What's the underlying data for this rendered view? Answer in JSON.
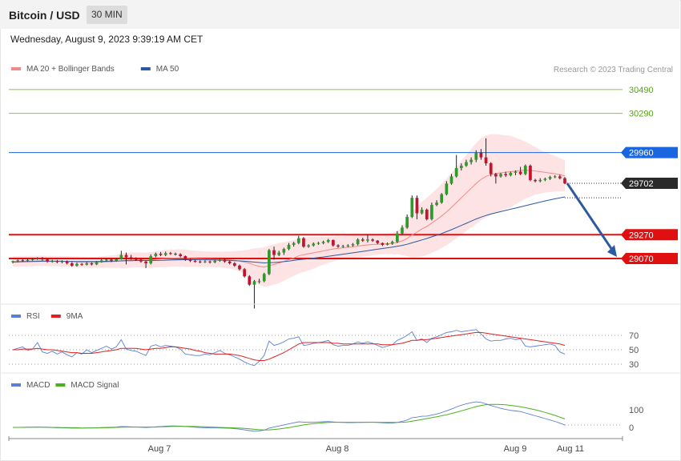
{
  "header": {
    "title": "Bitcoin / USD",
    "interval": "30 MIN"
  },
  "datetime": "Wednesday, August 9, 2023 9:39:19 AM CET",
  "legend_main": [
    {
      "label": "MA 20 + Bollinger Bands",
      "color": "#f08a8a"
    },
    {
      "label": "MA 50",
      "color": "#2c5aa0"
    }
  ],
  "legend_rsi": [
    {
      "label": "RSI",
      "color": "#5b7fd6"
    },
    {
      "label": "9MA",
      "color": "#e02020"
    }
  ],
  "legend_macd": [
    {
      "label": "MACD",
      "color": "#5b7fd6"
    },
    {
      "label": "MACD Signal",
      "color": "#4caf20"
    }
  ],
  "copyright": "Research © 2023 Trading Central",
  "chart_data": {
    "type": "candlestick",
    "price_axis": {
      "min": 28700,
      "max": 30570
    },
    "levels": [
      {
        "value": 30490,
        "label": "30490",
        "kind": "target",
        "color": "#8bc34a"
      },
      {
        "value": 30290,
        "label": "30290",
        "kind": "target",
        "color": "#8bc34a"
      },
      {
        "value": 29960,
        "label": "29960",
        "kind": "pivot",
        "color": "#1a66e0"
      },
      {
        "value": 29702,
        "label": "29702",
        "kind": "last_price",
        "color": "#2a2a2a"
      },
      {
        "value": 29270,
        "label": "29270",
        "kind": "support",
        "color": "#e01010"
      },
      {
        "value": 29070,
        "label": "29070",
        "kind": "support",
        "color": "#e01010"
      }
    ],
    "x_ticks": [
      "Aug 7",
      "Aug 8",
      "Aug 9",
      "Aug 11"
    ],
    "candles": [
      [
        29040,
        29048,
        29030,
        29052
      ],
      [
        29048,
        29055,
        29040,
        29062
      ],
      [
        29055,
        29050,
        29042,
        29065
      ],
      [
        29050,
        29058,
        29044,
        29066
      ],
      [
        29058,
        29065,
        29052,
        29074
      ],
      [
        29065,
        29070,
        29058,
        29080
      ],
      [
        29070,
        29062,
        29052,
        29082
      ],
      [
        29062,
        29045,
        29035,
        29070
      ],
      [
        29045,
        29048,
        29036,
        29060
      ],
      [
        29048,
        29040,
        29030,
        29058
      ],
      [
        29040,
        29046,
        29030,
        29055
      ],
      [
        29046,
        29030,
        29020,
        29054
      ],
      [
        29030,
        29010,
        29000,
        29040
      ],
      [
        29010,
        29025,
        29002,
        29036
      ],
      [
        29025,
        29018,
        29010,
        29032
      ],
      [
        29018,
        29030,
        29012,
        29040
      ],
      [
        29030,
        29020,
        29012,
        29038
      ],
      [
        29020,
        29040,
        29015,
        29048
      ],
      [
        29040,
        29055,
        29035,
        29064
      ],
      [
        29055,
        29060,
        29045,
        29070
      ],
      [
        29060,
        29050,
        29040,
        29070
      ],
      [
        29050,
        29065,
        29045,
        29075
      ],
      [
        29065,
        29100,
        29060,
        29135
      ],
      [
        29100,
        29080,
        29020,
        29120
      ],
      [
        29080,
        29070,
        29060,
        29100
      ],
      [
        29070,
        29060,
        29050,
        29080
      ],
      [
        29060,
        29045,
        29035,
        29068
      ],
      [
        29045,
        29030,
        28990,
        29050
      ],
      [
        29030,
        29090,
        29020,
        29105
      ],
      [
        29090,
        29110,
        29080,
        29120
      ],
      [
        29110,
        29100,
        29090,
        29125
      ],
      [
        29100,
        29115,
        29090,
        29128
      ],
      [
        29115,
        29110,
        29100,
        29125
      ],
      [
        29110,
        29105,
        29095,
        29120
      ],
      [
        29105,
        29090,
        29080,
        29115
      ],
      [
        29090,
        29060,
        29050,
        29095
      ],
      [
        29060,
        29050,
        29040,
        29068
      ],
      [
        29050,
        29045,
        29035,
        29060
      ],
      [
        29045,
        29040,
        29030,
        29055
      ],
      [
        29040,
        29045,
        29032,
        29055
      ],
      [
        29045,
        29038,
        29028,
        29052
      ],
      [
        29038,
        29050,
        29030,
        29058
      ],
      [
        29050,
        29060,
        29042,
        29068
      ],
      [
        29060,
        29045,
        29035,
        29068
      ],
      [
        29045,
        29030,
        29020,
        29052
      ],
      [
        29030,
        29010,
        29000,
        29040
      ],
      [
        29010,
        28980,
        28970,
        29020
      ],
      [
        28980,
        28920,
        28910,
        28990
      ],
      [
        28920,
        28850,
        28840,
        28930
      ],
      [
        28850,
        28880,
        28650,
        28890
      ],
      [
        28880,
        28880,
        28860,
        28900
      ],
      [
        28880,
        28940,
        28870,
        28950
      ],
      [
        28940,
        29140,
        28930,
        29150
      ],
      [
        29140,
        29100,
        29060,
        29170
      ],
      [
        29100,
        29120,
        29090,
        29135
      ],
      [
        29120,
        29150,
        29100,
        29160
      ],
      [
        29150,
        29185,
        29140,
        29200
      ],
      [
        29185,
        29200,
        29170,
        29210
      ],
      [
        29200,
        29240,
        29190,
        29260
      ],
      [
        29240,
        29170,
        29160,
        29250
      ],
      [
        29170,
        29180,
        29160,
        29190
      ],
      [
        29180,
        29195,
        29170,
        29205
      ],
      [
        29195,
        29200,
        29185,
        29210
      ],
      [
        29200,
        29210,
        29190,
        29220
      ],
      [
        29210,
        29225,
        29200,
        29235
      ],
      [
        29225,
        29180,
        29170,
        29230
      ],
      [
        29180,
        29170,
        29160,
        29190
      ],
      [
        29170,
        29175,
        29160,
        29185
      ],
      [
        29175,
        29180,
        29165,
        29190
      ],
      [
        29180,
        29190,
        29170,
        29200
      ],
      [
        29190,
        29230,
        29180,
        29240
      ],
      [
        29230,
        29220,
        29210,
        29245
      ],
      [
        29220,
        29230,
        29205,
        29270
      ],
      [
        29230,
        29220,
        29210,
        29240
      ],
      [
        29220,
        29200,
        29190,
        29225
      ],
      [
        29200,
        29185,
        29175,
        29205
      ],
      [
        29185,
        29195,
        29180,
        29205
      ],
      [
        29195,
        29210,
        29185,
        29220
      ],
      [
        29210,
        29280,
        29200,
        29300
      ],
      [
        29280,
        29330,
        29270,
        29350
      ],
      [
        29330,
        29420,
        29320,
        29440
      ],
      [
        29420,
        29580,
        29410,
        29600
      ],
      [
        29580,
        29450,
        29400,
        29600
      ],
      [
        29450,
        29480,
        29440,
        29500
      ],
      [
        29480,
        29400,
        29390,
        29490
      ],
      [
        29400,
        29520,
        29390,
        29540
      ],
      [
        29520,
        29540,
        29510,
        29560
      ],
      [
        29540,
        29610,
        29530,
        29620
      ],
      [
        29610,
        29700,
        29600,
        29720
      ],
      [
        29700,
        29760,
        29690,
        29780
      ],
      [
        29760,
        29830,
        29750,
        29940
      ],
      [
        29830,
        29850,
        29810,
        29870
      ],
      [
        29850,
        29880,
        29840,
        29900
      ],
      [
        29880,
        29900,
        29860,
        29920
      ],
      [
        29900,
        29960,
        29880,
        29980
      ],
      [
        29960,
        29920,
        29900,
        29990
      ],
      [
        29920,
        29870,
        29850,
        30080
      ],
      [
        29870,
        29780,
        29760,
        29880
      ],
      [
        29780,
        29760,
        29700,
        29790
      ],
      [
        29760,
        29780,
        29750,
        29790
      ],
      [
        29780,
        29770,
        29755,
        29800
      ],
      [
        29770,
        29790,
        29760,
        29800
      ],
      [
        29790,
        29800,
        29770,
        29810
      ],
      [
        29800,
        29780,
        29770,
        29840
      ],
      [
        29780,
        29850,
        29770,
        29860
      ],
      [
        29850,
        29730,
        29720,
        29860
      ],
      [
        29730,
        29720,
        29710,
        29740
      ],
      [
        29720,
        29730,
        29710,
        29745
      ],
      [
        29730,
        29740,
        29720,
        29750
      ],
      [
        29740,
        29755,
        29730,
        29765
      ],
      [
        29755,
        29760,
        29745,
        29770
      ],
      [
        29760,
        29745,
        29735,
        29775
      ],
      [
        29745,
        29702,
        29695,
        29755
      ]
    ],
    "ma20": [
      29045,
      29046,
      29047,
      29048,
      29049,
      29050,
      29051,
      29050,
      29049,
      29048,
      29047,
      29046,
      29044,
      29042,
      29040,
      29039,
      29038,
      29038,
      29040,
      29042,
      29044,
      29046,
      29052,
      29055,
      29057,
      29058,
      29058,
      29056,
      29058,
      29062,
      29066,
      29070,
      29072,
      29074,
      29075,
      29073,
      29070,
      29068,
      29066,
      29064,
      29063,
      29062,
      29062,
      29060,
      29058,
      29054,
      29048,
      29040,
      29030,
      29015,
      29005,
      28998,
      29010,
      29020,
      29032,
      29045,
      29060,
      29075,
      29092,
      29102,
      29110,
      29118,
      29126,
      29134,
      29142,
      29150,
      29156,
      29160,
      29164,
      29168,
      29174,
      29180,
      29184,
      29188,
      29190,
      29192,
      29194,
      29196,
      29205,
      29218,
      29238,
      29268,
      29292,
      29318,
      29340,
      29368,
      29396,
      29428,
      29462,
      29500,
      29540,
      29580,
      29620,
      29660,
      29700,
      29735,
      29760,
      29775,
      29784,
      29790,
      29795,
      29800,
      29805,
      29810,
      29812,
      29810,
      29806,
      29800,
      29794,
      29788,
      29782,
      29774,
      29765
    ],
    "ma50": [
      29040,
      29042,
      29043,
      29044,
      29045,
      29046,
      29047,
      29047,
      29047,
      29047,
      29047,
      29046,
      29046,
      29045,
      29045,
      29045,
      29045,
      29045,
      29046,
      29047,
      29048,
      29049,
      29050,
      29051,
      29052,
      29053,
      29053,
      29053,
      29053,
      29054,
      29055,
      29056,
      29057,
      29058,
      29059,
      29060,
      29060,
      29060,
      29060,
      29059,
      29058,
      29057,
      29056,
      29055,
      29054,
      29052,
      29050,
      29047,
      29044,
      29040,
      29036,
      29033,
      29034,
      29036,
      29040,
      29044,
      29048,
      29054,
      29060,
      29064,
      29068,
      29073,
      29078,
      29083,
      29088,
      29094,
      29100,
      29106,
      29112,
      29118,
      29124,
      29130,
      29136,
      29142,
      29148,
      29154,
      29160,
      29166,
      29173,
      29180,
      29190,
      29202,
      29214,
      29226,
      29238,
      29252,
      29266,
      29280,
      29296,
      29312,
      29330,
      29348,
      29366,
      29384,
      29402,
      29418,
      29432,
      29444,
      29454,
      29464,
      29474,
      29484,
      29494,
      29504,
      29514,
      29524,
      29534,
      29544,
      29554,
      29563,
      29572,
      29580,
      29588
    ],
    "bb_width": [
      45,
      45,
      44,
      44,
      44,
      43,
      43,
      43,
      43,
      43,
      44,
      44,
      45,
      46,
      46,
      46,
      46,
      46,
      48,
      50,
      52,
      54,
      62,
      64,
      64,
      63,
      62,
      64,
      66,
      68,
      70,
      72,
      72,
      72,
      72,
      72,
      70,
      68,
      66,
      66,
      66,
      66,
      66,
      68,
      72,
      78,
      88,
      100,
      116,
      140,
      155,
      165,
      170,
      170,
      168,
      162,
      156,
      150,
      148,
      146,
      140,
      132,
      124,
      116,
      110,
      104,
      100,
      98,
      96,
      94,
      94,
      94,
      92,
      90,
      88,
      86,
      86,
      88,
      100,
      120,
      150,
      190,
      210,
      230,
      240,
      250,
      260,
      270,
      280,
      290,
      300,
      310,
      320,
      330,
      340,
      345,
      345,
      340,
      330,
      320,
      310,
      300,
      280,
      260,
      240,
      220,
      200,
      185,
      170,
      160,
      150,
      140,
      130
    ],
    "rsi": [
      50,
      52,
      54,
      49,
      51,
      60,
      47,
      45,
      48,
      44,
      47,
      43,
      40,
      46,
      44,
      50,
      46,
      49,
      52,
      55,
      51,
      54,
      64,
      51,
      49,
      48,
      45,
      42,
      55,
      57,
      54,
      56,
      55,
      54,
      51,
      44,
      43,
      42,
      42,
      44,
      43,
      46,
      49,
      45,
      43,
      40,
      37,
      33,
      30,
      28,
      34,
      42,
      62,
      56,
      58,
      61,
      65,
      66,
      68,
      56,
      57,
      59,
      60,
      61,
      63,
      57,
      55,
      56,
      56,
      58,
      61,
      59,
      61,
      59,
      56,
      53,
      55,
      57,
      63,
      66,
      70,
      75,
      63,
      65,
      60,
      66,
      68,
      71,
      74,
      75,
      77,
      75,
      76,
      77,
      78,
      72,
      65,
      62,
      63,
      63,
      65,
      66,
      64,
      65,
      55,
      54,
      55,
      56,
      57,
      58,
      56,
      47,
      44
    ],
    "rsi_ma": [
      50,
      50,
      51,
      51,
      51,
      52,
      51,
      50,
      50,
      49,
      48,
      47,
      46,
      46,
      45,
      45,
      45,
      46,
      47,
      48,
      49,
      50,
      52,
      52,
      52,
      52,
      51,
      50,
      51,
      52,
      52,
      53,
      54,
      54,
      53,
      52,
      51,
      49,
      48,
      46,
      45,
      44,
      44,
      44,
      44,
      43,
      42,
      40,
      38,
      36,
      35,
      35,
      37,
      40,
      43,
      46,
      50,
      54,
      58,
      60,
      60,
      60,
      60,
      60,
      60,
      59,
      59,
      58,
      58,
      58,
      58,
      58,
      58,
      58,
      58,
      57,
      57,
      57,
      58,
      59,
      61,
      63,
      63,
      64,
      64,
      65,
      66,
      67,
      68,
      69,
      70,
      71,
      72,
      73,
      74,
      74,
      73,
      72,
      71,
      70,
      69,
      68,
      67,
      66,
      65,
      64,
      63,
      62,
      61,
      60,
      59,
      58,
      56
    ],
    "macd_axis": {
      "min": -20,
      "max": 210
    },
    "macd": [
      0,
      0,
      1,
      1,
      1,
      2,
      1,
      0,
      -1,
      -2,
      -2,
      -3,
      -4,
      -4,
      -4,
      -3,
      -3,
      -2,
      -1,
      0,
      1,
      2,
      5,
      4,
      3,
      2,
      1,
      -1,
      1,
      3,
      5,
      7,
      8,
      8,
      7,
      5,
      3,
      1,
      -1,
      -2,
      -3,
      -3,
      -3,
      -4,
      -5,
      -7,
      -10,
      -14,
      -18,
      -22,
      -20,
      -16,
      -4,
      2,
      8,
      14,
      20,
      26,
      32,
      30,
      29,
      30,
      31,
      32,
      33,
      31,
      29,
      28,
      27,
      27,
      28,
      28,
      29,
      29,
      28,
      26,
      25,
      24,
      28,
      34,
      42,
      55,
      58,
      63,
      64,
      70,
      76,
      84,
      94,
      104,
      116,
      126,
      134,
      140,
      145,
      142,
      134,
      124,
      116,
      108,
      102,
      97,
      93,
      90,
      82,
      74,
      66,
      58,
      50,
      42,
      34,
      24,
      14
    ],
    "macd_signal": [
      0,
      0,
      0,
      1,
      1,
      1,
      1,
      1,
      0,
      0,
      -1,
      -1,
      -2,
      -2,
      -3,
      -3,
      -3,
      -3,
      -2,
      -2,
      -1,
      0,
      1,
      2,
      2,
      2,
      2,
      2,
      2,
      2,
      3,
      4,
      5,
      6,
      6,
      6,
      6,
      5,
      4,
      3,
      2,
      1,
      0,
      -1,
      -2,
      -3,
      -4,
      -6,
      -8,
      -11,
      -13,
      -15,
      -14,
      -12,
      -9,
      -5,
      -1,
      4,
      9,
      14,
      18,
      21,
      24,
      26,
      28,
      29,
      29,
      29,
      29,
      29,
      29,
      29,
      29,
      29,
      29,
      28,
      28,
      28,
      28,
      29,
      31,
      35,
      40,
      45,
      50,
      55,
      60,
      66,
      72,
      79,
      86,
      94,
      102,
      110,
      118,
      124,
      129,
      131,
      131,
      130,
      128,
      125,
      121,
      117,
      112,
      106,
      100,
      93,
      85,
      77,
      68,
      58,
      48
    ]
  }
}
